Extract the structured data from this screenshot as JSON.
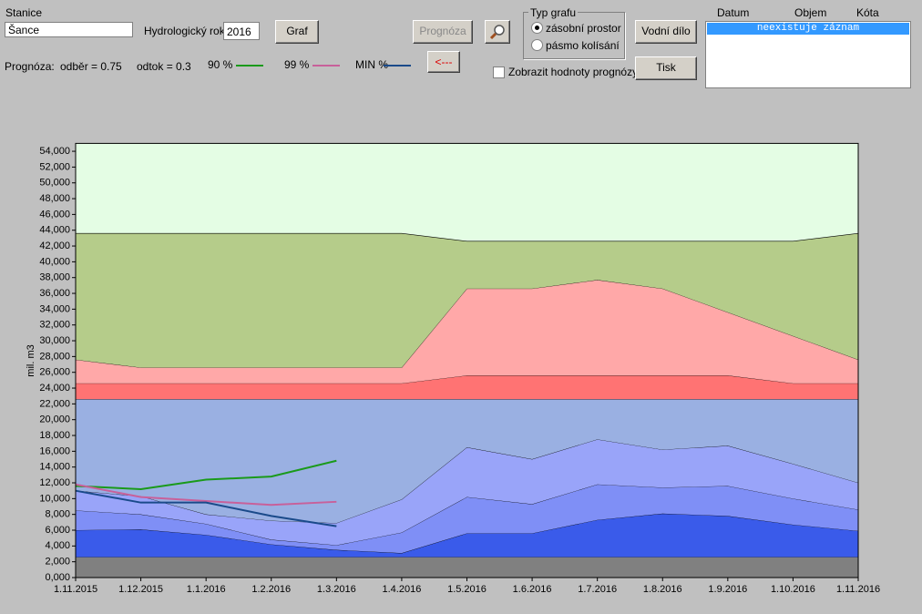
{
  "ui": {
    "station_label": "Stanice",
    "station": "Šance",
    "year_label": "Hydrologický rok",
    "year": "2016",
    "graf_button": "Graf",
    "prognoza_button": "Prognóza",
    "back_button": "<---",
    "graph_type_label": "Typ grafu",
    "radio_1": "zásobní prostor",
    "radio_2": "pásmo kolísání",
    "vodni_dilo_button": "Vodní dílo",
    "tisk_button": "Tisk",
    "checkbox": "Zobrazit hodnoty prognózy",
    "prognoza_label": "Prognóza:",
    "odber": "odběr = 0.75",
    "odtok": "odtok = 0.3",
    "list_headers": [
      "Datum",
      "Objem",
      "Kóta"
    ],
    "list_item": "neexistuje záznam"
  },
  "chart_data": {
    "type": "area",
    "stacked": true,
    "y_label": "mil. m3",
    "background": "#e4fde4",
    "categories": [
      "1.11.2015",
      "1.12.2015",
      "1.1.2016",
      "1.2.2016",
      "1.3.2016",
      "1.4.2016",
      "1.5.2016",
      "1.6.2016",
      "1.7.2016",
      "1.8.2016",
      "1.9.2016",
      "1.10.2016",
      "1.11.2016"
    ],
    "ylim": [
      0,
      55000
    ],
    "yticks": [
      {
        "value": 0,
        "label": "0,000"
      },
      {
        "value": 2000,
        "label": "2,000"
      },
      {
        "value": 4000,
        "label": "4,000"
      },
      {
        "value": 6000,
        "label": "6,000"
      },
      {
        "value": 8000,
        "label": "8,000"
      },
      {
        "value": 10000,
        "label": "10,000"
      },
      {
        "value": 12000,
        "label": "12,000"
      },
      {
        "value": 14000,
        "label": "14,000"
      },
      {
        "value": 16000,
        "label": "16,000"
      },
      {
        "value": 18000,
        "label": "18,000"
      },
      {
        "value": 20000,
        "label": "20,000"
      },
      {
        "value": 22000,
        "label": "22,000"
      },
      {
        "value": 24000,
        "label": "24,000"
      },
      {
        "value": 26000,
        "label": "26,000"
      },
      {
        "value": 28000,
        "label": "28,000"
      },
      {
        "value": 30000,
        "label": "30,000"
      },
      {
        "value": 32000,
        "label": "32,000"
      },
      {
        "value": 34000,
        "label": "34,000"
      },
      {
        "value": 36000,
        "label": "36,000"
      },
      {
        "value": 38000,
        "label": "38,000"
      },
      {
        "value": 40000,
        "label": "40,000"
      },
      {
        "value": 42000,
        "label": "42,000"
      },
      {
        "value": 44000,
        "label": "44,000"
      },
      {
        "value": 46000,
        "label": "46,000"
      },
      {
        "value": 48000,
        "label": "48,000"
      },
      {
        "value": 50000,
        "label": "50,000"
      },
      {
        "value": 52000,
        "label": "52,000"
      },
      {
        "value": 54000,
        "label": "54,000"
      }
    ],
    "series": [
      {
        "color": "#808080",
        "values": [
          2600,
          2600,
          2600,
          2600,
          2600,
          2600,
          2600,
          2600,
          2600,
          2600,
          2600,
          2600,
          2600
        ]
      },
      {
        "color": "#3a5bea",
        "values": [
          3400,
          3500,
          2800,
          1600,
          900,
          500,
          3000,
          3000,
          4700,
          5500,
          5200,
          4100,
          3300
        ]
      },
      {
        "color": "#7f8ff6",
        "values": [
          2500,
          1900,
          1400,
          600,
          600,
          2600,
          4600,
          3700,
          4500,
          3300,
          3800,
          3300,
          2700
        ]
      },
      {
        "color": "#99a4f9",
        "values": [
          2500,
          2300,
          1200,
          2400,
          2800,
          4200,
          6300,
          5700,
          5700,
          4800,
          5100,
          4400,
          3400
        ]
      },
      {
        "color": "#9ab0e2",
        "values": [
          11600,
          12300,
          14600,
          15400,
          15700,
          12700,
          6100,
          7600,
          5100,
          6400,
          5900,
          8200,
          10600
        ]
      },
      {
        "color": "#ff7373",
        "values": [
          2000,
          2000,
          2000,
          2000,
          2000,
          2000,
          3000,
          3000,
          3000,
          3000,
          3000,
          2000,
          2000
        ]
      },
      {
        "color": "#ffa8a8",
        "values": [
          3000,
          2000,
          2000,
          2000,
          2000,
          2000,
          11000,
          11000,
          12100,
          11000,
          8000,
          6000,
          3000
        ]
      },
      {
        "color": "#b5cc8a",
        "values": [
          16000,
          17000,
          17000,
          17000,
          17000,
          17000,
          6000,
          6000,
          4900,
          6000,
          9000,
          12000,
          16000
        ]
      }
    ],
    "lines": [
      {
        "name": "90 %",
        "color": "#1a9a1a",
        "values": [
          11600,
          11200,
          12400,
          12800,
          14800,
          null,
          null,
          null,
          null,
          null,
          null,
          null,
          null
        ]
      },
      {
        "name": "99 %",
        "color": "#c8609a",
        "values": [
          11800,
          10200,
          9700,
          9200,
          9600,
          null,
          null,
          null,
          null,
          null,
          null,
          null,
          null
        ]
      },
      {
        "name": "MIN %",
        "color": "#1a4a8a",
        "values": [
          11000,
          9500,
          9500,
          7800,
          6500,
          null,
          null,
          null,
          null,
          null,
          null,
          null,
          null
        ]
      }
    ]
  }
}
